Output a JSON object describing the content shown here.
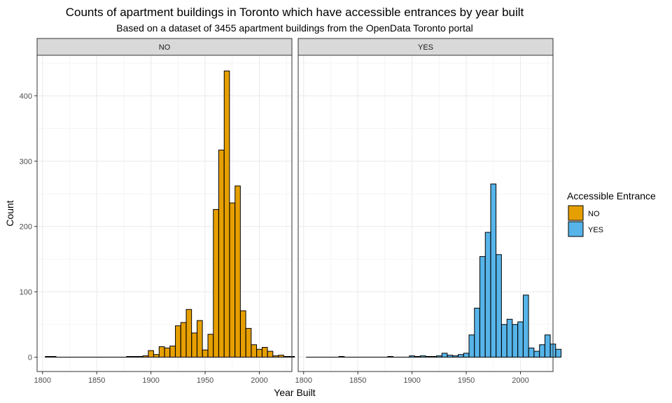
{
  "chart_data": {
    "type": "bar",
    "title": "Counts of apartment buildings in Toronto which have accessible entrances by year built",
    "subtitle": "Based on a dataset of 3455 apartment buildings from the OpenData Toronto portal",
    "xlabel": "Year Built",
    "ylabel": "Count",
    "xlim": [
      1795,
      2030
    ],
    "ylim": [
      -22,
      462
    ],
    "xticks": [
      1800,
      1850,
      1900,
      1950,
      2000
    ],
    "yticks": [
      0,
      100,
      200,
      300,
      400
    ],
    "grid": true,
    "legend": {
      "title": "Accessible Entrance",
      "placement": "right",
      "entries": [
        {
          "label": "NO",
          "color": "#E69F00"
        },
        {
          "label": "YES",
          "color": "#56B4E9"
        }
      ]
    },
    "bin_width": 4.9,
    "panels": [
      {
        "strip": "NO",
        "fill": "#E69F00",
        "bins": [
          [
            1805,
            1
          ],
          [
            1810,
            1
          ],
          [
            1815,
            0
          ],
          [
            1820,
            0
          ],
          [
            1825,
            0
          ],
          [
            1830,
            0
          ],
          [
            1835,
            0
          ],
          [
            1840,
            0
          ],
          [
            1845,
            0
          ],
          [
            1850,
            0
          ],
          [
            1855,
            0
          ],
          [
            1860,
            0
          ],
          [
            1865,
            0
          ],
          [
            1870,
            0
          ],
          [
            1875,
            0
          ],
          [
            1880,
            1
          ],
          [
            1885,
            1
          ],
          [
            1890,
            1
          ],
          [
            1895,
            2
          ],
          [
            1900,
            10
          ],
          [
            1905,
            4
          ],
          [
            1910,
            16
          ],
          [
            1915,
            14
          ],
          [
            1920,
            17
          ],
          [
            1925,
            48
          ],
          [
            1930,
            53
          ],
          [
            1935,
            73
          ],
          [
            1940,
            37
          ],
          [
            1945,
            56
          ],
          [
            1950,
            11
          ],
          [
            1955,
            35
          ],
          [
            1960,
            226
          ],
          [
            1965,
            317
          ],
          [
            1970,
            438
          ],
          [
            1975,
            236
          ],
          [
            1980,
            262
          ],
          [
            1985,
            71
          ],
          [
            1990,
            44
          ],
          [
            1995,
            19
          ],
          [
            2000,
            12
          ],
          [
            2005,
            15
          ],
          [
            2010,
            9
          ],
          [
            2015,
            2
          ],
          [
            2020,
            3
          ],
          [
            2025,
            1
          ],
          [
            2030,
            1
          ]
        ]
      },
      {
        "strip": "YES",
        "fill": "#56B4E9",
        "bins": [
          [
            1805,
            0
          ],
          [
            1810,
            0
          ],
          [
            1815,
            0
          ],
          [
            1820,
            0
          ],
          [
            1825,
            0
          ],
          [
            1830,
            0
          ],
          [
            1835,
            1
          ],
          [
            1840,
            0
          ],
          [
            1845,
            0
          ],
          [
            1850,
            0
          ],
          [
            1855,
            0
          ],
          [
            1860,
            0
          ],
          [
            1865,
            0
          ],
          [
            1870,
            0
          ],
          [
            1875,
            0
          ],
          [
            1880,
            1
          ],
          [
            1885,
            0
          ],
          [
            1890,
            0
          ],
          [
            1895,
            0
          ],
          [
            1900,
            2
          ],
          [
            1905,
            1
          ],
          [
            1910,
            2
          ],
          [
            1915,
            1
          ],
          [
            1920,
            1
          ],
          [
            1925,
            2
          ],
          [
            1930,
            6
          ],
          [
            1935,
            3
          ],
          [
            1940,
            2
          ],
          [
            1945,
            4
          ],
          [
            1950,
            6
          ],
          [
            1955,
            34
          ],
          [
            1960,
            75
          ],
          [
            1965,
            154
          ],
          [
            1970,
            191
          ],
          [
            1975,
            265
          ],
          [
            1980,
            157
          ],
          [
            1985,
            50
          ],
          [
            1990,
            58
          ],
          [
            1995,
            50
          ],
          [
            2000,
            54
          ],
          [
            2005,
            95
          ],
          [
            2010,
            14
          ],
          [
            2015,
            9
          ],
          [
            2020,
            19
          ],
          [
            2025,
            34
          ],
          [
            2030,
            20
          ],
          [
            2035,
            12
          ]
        ]
      }
    ]
  }
}
